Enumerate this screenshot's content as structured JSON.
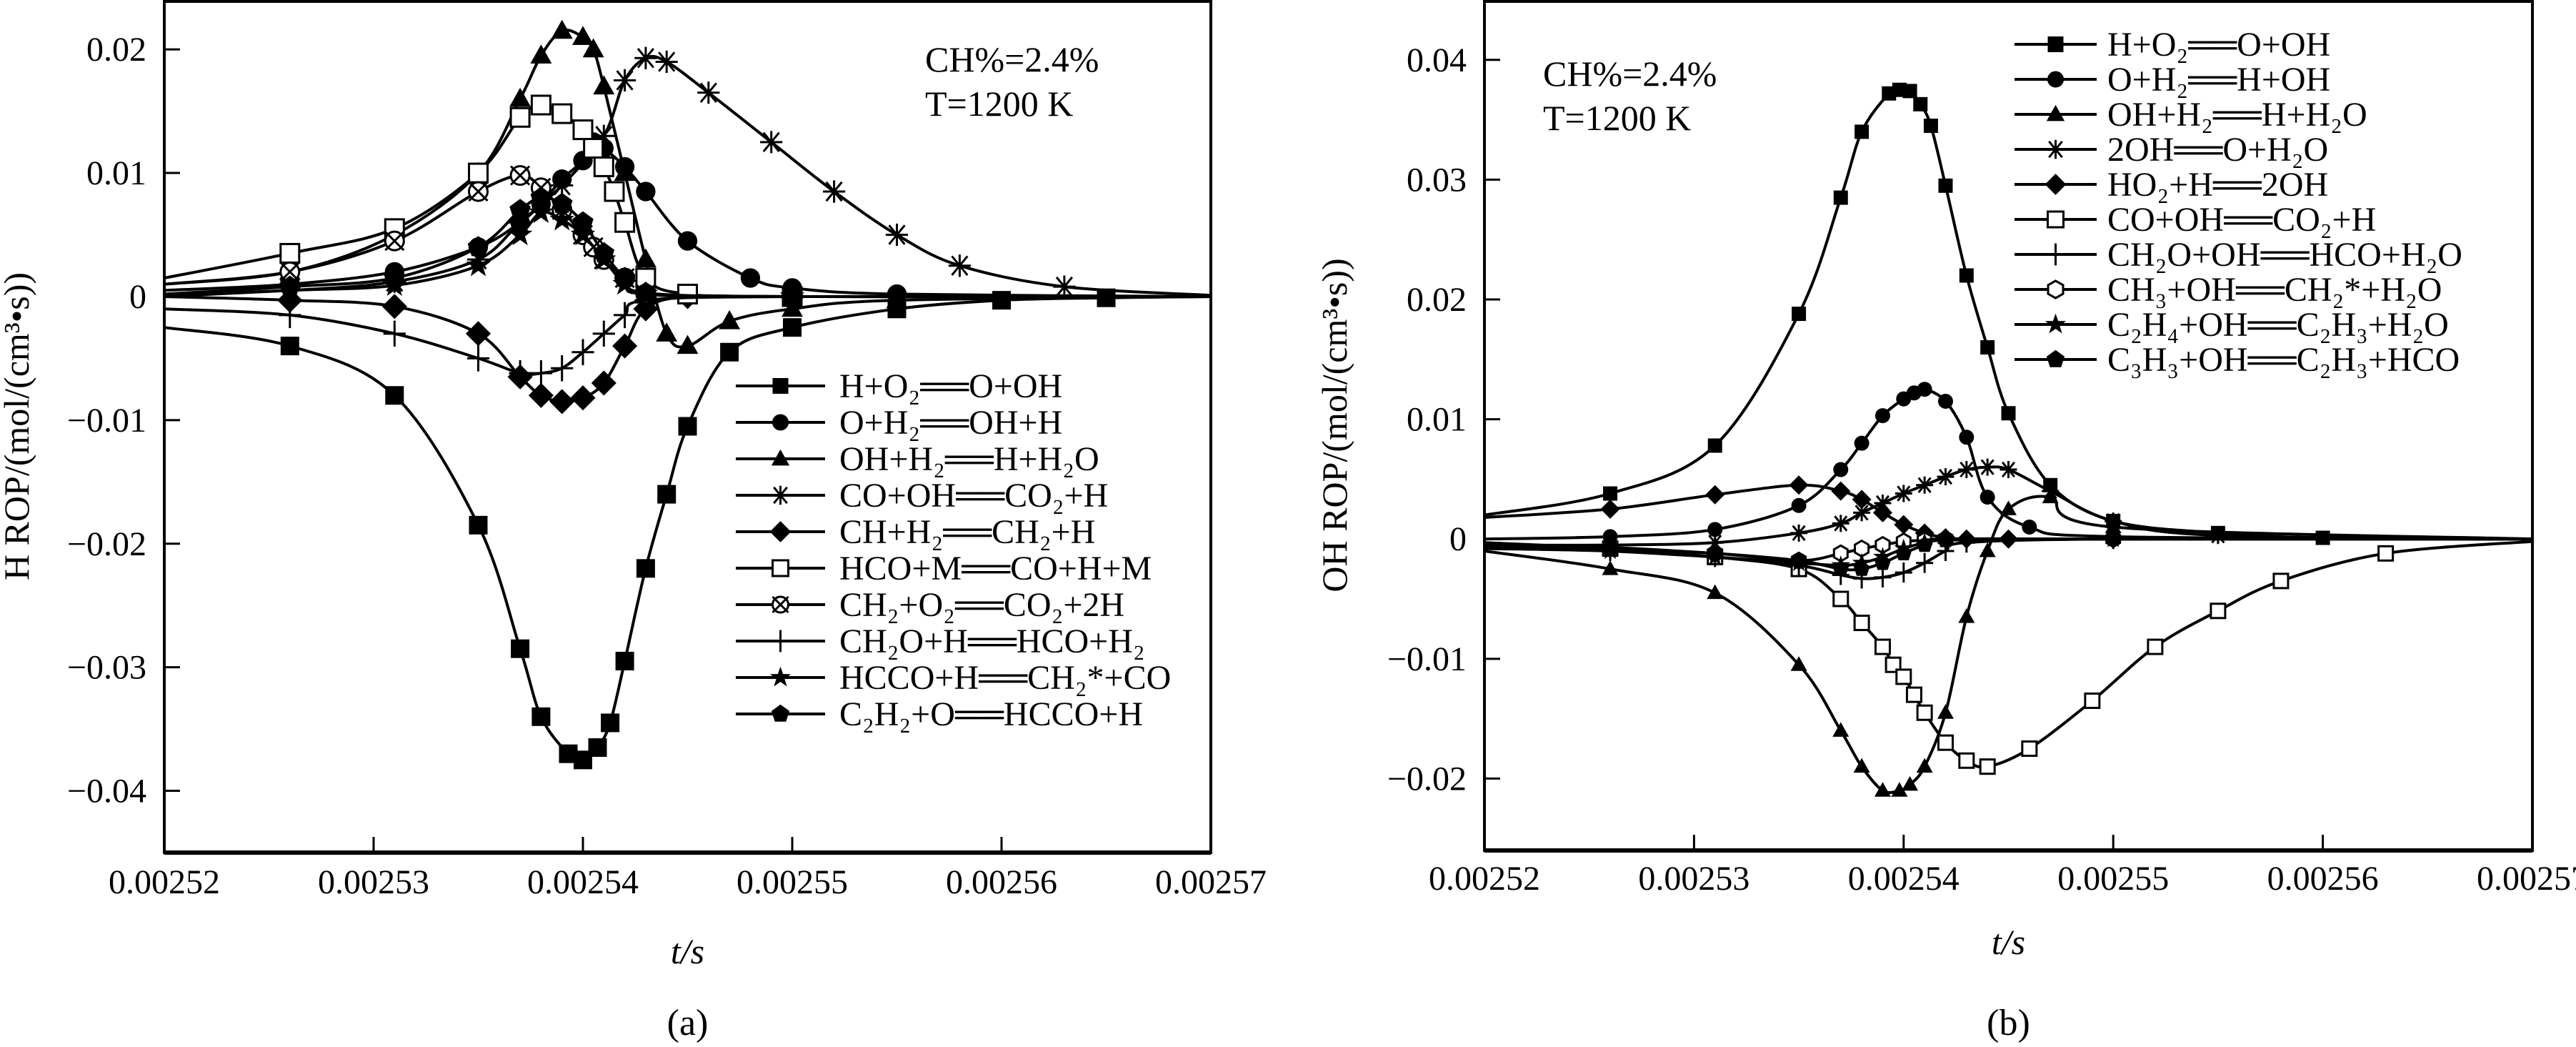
{
  "chart_data": [
    {
      "id": "a",
      "type": "line",
      "caption": "(a)",
      "xlabel": "t/s",
      "ylabel": "H ROP/(mol/(cm³•s))",
      "xlim": [
        0.00252,
        0.00257
      ],
      "ylim": [
        -0.045,
        0.024
      ],
      "xticks": [
        0.00252,
        0.00253,
        0.00254,
        0.00255,
        0.00256,
        0.00257
      ],
      "xtick_labels": [
        "0.00252",
        "0.00253",
        "0.00254",
        "0.00255",
        "0.00256",
        "0.00257"
      ],
      "yticks": [
        0.02,
        0.01,
        0,
        -0.01,
        -0.02,
        -0.03,
        -0.04
      ],
      "ytick_labels": [
        "0.02",
        "0.01",
        "0",
        "−0.01",
        "−0.02",
        "−0.03",
        "−0.04"
      ],
      "annotations": [
        "CH%=2.4%",
        "T=1200 K"
      ],
      "legend_position": "bottom-right",
      "grid": false,
      "series": [
        {
          "name": "H+O₂══O+OH",
          "marker": "square-filled",
          "x": [
            0.00252,
            0.002526,
            0.002531,
            0.002535,
            0.002537,
            0.002538,
            0.0025393,
            0.00254,
            0.0025407,
            0.0025413,
            0.002542,
            0.002543,
            0.002544,
            0.002545,
            0.002547,
            0.00255,
            0.002555,
            0.00256,
            0.002565,
            0.00257
          ],
          "y": [
            -0.0025,
            -0.004,
            -0.008,
            -0.0185,
            -0.0285,
            -0.034,
            -0.037,
            -0.0375,
            -0.0365,
            -0.0345,
            -0.0295,
            -0.022,
            -0.016,
            -0.0105,
            -0.0045,
            -0.0025,
            -0.001,
            -0.0003,
            -0.0001,
            0
          ]
        },
        {
          "name": "O+H₂══OH+H",
          "marker": "circle-filled",
          "x": [
            0.00252,
            0.002526,
            0.002531,
            0.002535,
            0.002537,
            0.002538,
            0.002539,
            0.00254,
            0.0025405,
            0.002541,
            0.002542,
            0.002543,
            0.002545,
            0.002548,
            0.00255,
            0.002555,
            0.00257
          ],
          "y": [
            0.0005,
            0.001,
            0.002,
            0.004,
            0.006,
            0.0075,
            0.0095,
            0.011,
            0.0125,
            0.012,
            0.0105,
            0.0085,
            0.0045,
            0.0015,
            0.0007,
            0.0002,
            0
          ]
        },
        {
          "name": "OH+H₂══H+H₂O",
          "marker": "triangle-filled",
          "x": [
            0.00252,
            0.002526,
            0.002531,
            0.002535,
            0.002537,
            0.002538,
            0.002539,
            0.00254,
            0.0025405,
            0.002541,
            0.002542,
            0.002543,
            0.002544,
            0.002545,
            0.002547,
            0.00255,
            0.002555,
            0.00257
          ],
          "y": [
            0.001,
            0.002,
            0.005,
            0.01,
            0.016,
            0.0195,
            0.0215,
            0.021,
            0.02,
            0.017,
            0.01,
            0.003,
            -0.003,
            -0.004,
            -0.002,
            -0.001,
            -0.0003,
            0
          ]
        },
        {
          "name": "CO+OH══CO₂+H",
          "marker": "asterisk",
          "x": [
            0.00252,
            0.002526,
            0.002531,
            0.002535,
            0.002537,
            0.002539,
            0.002541,
            0.002542,
            0.002543,
            0.002544,
            0.002546,
            0.002549,
            0.002552,
            0.002555,
            0.002558,
            0.002563,
            0.00257
          ],
          "y": [
            0.0002,
            0.0005,
            0.0012,
            0.003,
            0.006,
            0.009,
            0.013,
            0.0175,
            0.0193,
            0.019,
            0.0165,
            0.0125,
            0.0085,
            0.005,
            0.0025,
            0.0008,
            0.0001
          ]
        },
        {
          "name": "CH+H₂══CH₂+H",
          "marker": "diamond-filled",
          "x": [
            0.00252,
            0.002526,
            0.002531,
            0.002535,
            0.002537,
            0.002538,
            0.002539,
            0.00254,
            0.002541,
            0.002542,
            0.002543,
            0.002545,
            0.00255,
            0.00257
          ],
          "y": [
            0,
            -0.0003,
            -0.0008,
            -0.003,
            -0.0065,
            -0.008,
            -0.0085,
            -0.0082,
            -0.007,
            -0.004,
            -0.001,
            0,
            0,
            0
          ]
        },
        {
          "name": "HCO+M══CO+H+M",
          "marker": "square-open",
          "x": [
            0.00252,
            0.002526,
            0.002531,
            0.002535,
            0.002537,
            0.002538,
            0.002539,
            0.00254,
            0.0025405,
            0.002541,
            0.0025415,
            0.002542,
            0.002543,
            0.002545,
            0.00255,
            0.00257
          ],
          "y": [
            0.0015,
            0.0035,
            0.0055,
            0.01,
            0.0145,
            0.0155,
            0.0148,
            0.0135,
            0.012,
            0.0105,
            0.0085,
            0.006,
            0.0015,
            0.0002,
            0,
            0
          ]
        },
        {
          "name": "CH₂+O₂══CO₂+2H",
          "marker": "circle-x",
          "x": [
            0.00252,
            0.002526,
            0.002531,
            0.002535,
            0.002537,
            0.002538,
            0.002539,
            0.00254,
            0.0025405,
            0.002541,
            0.002542,
            0.002543,
            0.00255,
            0.00257
          ],
          "y": [
            0.001,
            0.002,
            0.0045,
            0.0085,
            0.0098,
            0.0088,
            0.007,
            0.005,
            0.004,
            0.003,
            0.0015,
            0.0002,
            0,
            0
          ]
        },
        {
          "name": "CH₂O+H══HCO+H₂",
          "marker": "plus",
          "x": [
            0.00252,
            0.002526,
            0.002531,
            0.002535,
            0.002537,
            0.002538,
            0.002539,
            0.00254,
            0.002541,
            0.002542,
            0.002543,
            0.00255,
            0.00257
          ],
          "y": [
            -0.001,
            -0.0015,
            -0.003,
            -0.005,
            -0.0062,
            -0.0062,
            -0.0058,
            -0.0045,
            -0.003,
            -0.0015,
            -0.0003,
            0,
            0
          ]
        },
        {
          "name": "HCCO+H══CH₂*+CO",
          "marker": "star-filled",
          "x": [
            0.00252,
            0.002526,
            0.002531,
            0.002535,
            0.002537,
            0.002538,
            0.002539,
            0.00254,
            0.002541,
            0.002542,
            0.002543,
            0.00255,
            0.00257
          ],
          "y": [
            0,
            0.0005,
            0.0009,
            0.0025,
            0.005,
            0.0068,
            0.0062,
            0.005,
            0.003,
            0.001,
            0.0002,
            0,
            0
          ]
        },
        {
          "name": "C₂H₂+O══HCCO+H",
          "marker": "pentagon-filled",
          "x": [
            0.00252,
            0.002526,
            0.002531,
            0.002535,
            0.002537,
            0.002538,
            0.002539,
            0.00254,
            0.002541,
            0.002542,
            0.002543,
            0.00255,
            0.00257
          ],
          "y": [
            0.0002,
            0.0008,
            0.0015,
            0.004,
            0.007,
            0.008,
            0.0075,
            0.006,
            0.0035,
            0.0015,
            0.0003,
            0,
            0
          ]
        }
      ]
    },
    {
      "id": "b",
      "type": "line",
      "caption": "(b)",
      "xlabel": "t/s",
      "ylabel": "OH ROP/(mol/(cm³•s))",
      "xlim": [
        0.00252,
        0.00257
      ],
      "ylim": [
        -0.026,
        0.045
      ],
      "xticks": [
        0.00252,
        0.00253,
        0.00254,
        0.00255,
        0.00256,
        0.00257
      ],
      "xtick_labels": [
        "0.00252",
        "0.00253",
        "0.00254",
        "0.00255",
        "0.00256",
        "0.00257"
      ],
      "yticks": [
        0.04,
        0.03,
        0.02,
        0.01,
        0,
        -0.01,
        -0.02
      ],
      "ytick_labels": [
        "0.04",
        "0.03",
        "0.02",
        "0.01",
        "0",
        "−0.01",
        "−0.02"
      ],
      "annotations": [
        "CH%=2.4%",
        "T=1200 K"
      ],
      "legend_position": "top-right",
      "grid": false,
      "series": [
        {
          "name": "H+O₂══O+OH",
          "marker": "square-filled",
          "x": [
            0.00252,
            0.002526,
            0.002531,
            0.002535,
            0.002537,
            0.002538,
            0.0025393,
            0.0025398,
            0.0025403,
            0.0025408,
            0.0025413,
            0.002542,
            0.002543,
            0.002544,
            0.002545,
            0.002547,
            0.00255,
            0.002555,
            0.00256,
            0.00257
          ],
          "y": [
            0.002,
            0.0038,
            0.0078,
            0.0188,
            0.0285,
            0.034,
            0.0372,
            0.0375,
            0.0374,
            0.0363,
            0.0345,
            0.0295,
            0.022,
            0.016,
            0.0105,
            0.0045,
            0.0015,
            0.0005,
            0.0001,
            0
          ]
        },
        {
          "name": "O+H₂══H+OH",
          "marker": "circle-filled",
          "x": [
            0.00252,
            0.002526,
            0.002531,
            0.002535,
            0.002537,
            0.002538,
            0.002539,
            0.00254,
            0.0025405,
            0.002541,
            0.002542,
            0.002543,
            0.002544,
            0.002546,
            0.00255,
            0.00257
          ],
          "y": [
            0,
            0.0002,
            0.0008,
            0.0028,
            0.0058,
            0.008,
            0.0103,
            0.0117,
            0.0122,
            0.0125,
            0.0115,
            0.0085,
            0.0035,
            0.001,
            0.0002,
            0
          ]
        },
        {
          "name": "OH+H₂══H+H₂O",
          "marker": "triangle-filled",
          "x": [
            0.00252,
            0.002526,
            0.002531,
            0.002535,
            0.002537,
            0.002538,
            0.002539,
            0.0025398,
            0.0025403,
            0.002541,
            0.002542,
            0.002543,
            0.002544,
            0.002545,
            0.002547,
            0.00255,
            0.00257
          ],
          "y": [
            -0.001,
            -0.0025,
            -0.0045,
            -0.0105,
            -0.016,
            -0.019,
            -0.021,
            -0.021,
            -0.0205,
            -0.019,
            -0.0145,
            -0.0065,
            -0.001,
            0.0025,
            0.0035,
            0.001,
            0
          ]
        },
        {
          "name": "2OH══O+H₂O",
          "marker": "asterisk",
          "x": [
            0.00252,
            0.002526,
            0.002531,
            0.002535,
            0.002537,
            0.002538,
            0.002539,
            0.00254,
            0.002541,
            0.002542,
            0.002543,
            0.002544,
            0.002545,
            0.002547,
            0.00255,
            0.002555,
            0.00257
          ],
          "y": [
            -0.0005,
            -0.0005,
            -0.0003,
            0.0005,
            0.0013,
            0.0022,
            0.003,
            0.0038,
            0.0045,
            0.0052,
            0.0058,
            0.006,
            0.0058,
            0.004,
            0.0015,
            0.0003,
            0
          ]
        },
        {
          "name": "HO₂+H══2OH",
          "marker": "diamond-filled",
          "x": [
            0.00252,
            0.002526,
            0.002531,
            0.002535,
            0.002537,
            0.002538,
            0.002539,
            0.00254,
            0.002541,
            0.002542,
            0.002543,
            0.002545,
            0.00255,
            0.00257
          ],
          "y": [
            0.0018,
            0.0025,
            0.0037,
            0.0045,
            0.004,
            0.0033,
            0.0022,
            0.0012,
            0.0005,
            0.0001,
            0,
            0,
            0,
            0
          ]
        },
        {
          "name": "CO+OH══CO₂+H",
          "marker": "square-open",
          "x": [
            0.00252,
            0.002526,
            0.002531,
            0.002535,
            0.002537,
            0.002538,
            0.002539,
            0.0025395,
            0.00254,
            0.0025405,
            0.002541,
            0.002542,
            0.002543,
            0.002544,
            0.002546,
            0.002549,
            0.002552,
            0.002555,
            0.002558,
            0.002563,
            0.00257
          ],
          "y": [
            -0.0003,
            -0.0008,
            -0.0015,
            -0.0025,
            -0.005,
            -0.007,
            -0.009,
            -0.0105,
            -0.0115,
            -0.013,
            -0.0145,
            -0.017,
            -0.0185,
            -0.019,
            -0.0175,
            -0.0135,
            -0.009,
            -0.006,
            -0.0035,
            -0.0012,
            -0.0002
          ]
        },
        {
          "name": "CH₂O+OH══HCO+H₂O",
          "marker": "plus",
          "x": [
            0.00252,
            0.002526,
            0.002531,
            0.002535,
            0.002537,
            0.002538,
            0.002539,
            0.00254,
            0.002541,
            0.002542,
            0.002543,
            0.00255,
            0.00257
          ],
          "y": [
            -0.0008,
            -0.001,
            -0.0015,
            -0.0022,
            -0.003,
            -0.0033,
            -0.0032,
            -0.0028,
            -0.002,
            -0.001,
            -0.0003,
            0,
            0
          ]
        },
        {
          "name": "CH₃+OH══CH₂*+H₂O",
          "marker": "hexagon-open",
          "x": [
            0.00252,
            0.002526,
            0.002531,
            0.002535,
            0.002537,
            0.002538,
            0.002539,
            0.00254,
            0.002541,
            0.002542,
            0.00255,
            0.00257
          ],
          "y": [
            -0.0005,
            -0.0008,
            -0.0012,
            -0.0018,
            -0.0012,
            -0.0008,
            -0.0005,
            -0.0002,
            -0.0001,
            0,
            0,
            0
          ]
        },
        {
          "name": "C₂H₄+OH══C₂H₃+H₂O",
          "marker": "star-filled",
          "x": [
            0.00252,
            0.002526,
            0.002531,
            0.002535,
            0.002537,
            0.002538,
            0.002539,
            0.00254,
            0.002541,
            0.002542,
            0.00255,
            0.00257
          ],
          "y": [
            -0.0006,
            -0.001,
            -0.0015,
            -0.002,
            -0.0022,
            -0.002,
            -0.0015,
            -0.0008,
            -0.0003,
            0,
            0,
            0
          ]
        },
        {
          "name": "C₃H₃+OH══C₂H₃+HCO",
          "marker": "pentagon-filled",
          "x": [
            0.00252,
            0.002526,
            0.002531,
            0.002535,
            0.002537,
            0.002538,
            0.002539,
            0.00254,
            0.002541,
            0.002542,
            0.00255,
            0.00257
          ],
          "y": [
            -0.0004,
            -0.0007,
            -0.0012,
            -0.0018,
            -0.0025,
            -0.0025,
            -0.002,
            -0.0012,
            -0.0005,
            -0.0001,
            0,
            0
          ]
        }
      ]
    }
  ]
}
